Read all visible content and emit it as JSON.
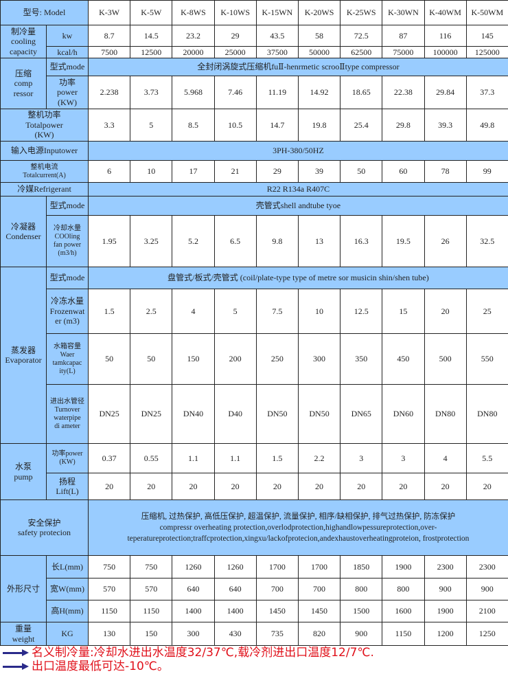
{
  "header": {
    "label": "型号: Model",
    "models": [
      "K-3W",
      "K-5W",
      "K-8WS",
      "K-10WS",
      "K-15WN",
      "K-20WS",
      "K-25WS",
      "K-30WN",
      "K-40WM",
      "K-50WM"
    ]
  },
  "sections": [
    {
      "group": "制冷量\ncooling\ncapacity",
      "rows": [
        {
          "label": "kw",
          "values": [
            "8.7",
            "14.5",
            "23.2",
            "29",
            "43.5",
            "58",
            "72.5",
            "87",
            "116",
            "145"
          ]
        },
        {
          "label": "kcal/h",
          "values": [
            "7500",
            "12500",
            "20000",
            "25000",
            "37500",
            "50000",
            "62500",
            "75000",
            "100000",
            "125000"
          ]
        }
      ]
    },
    {
      "group": "压缩\ncomp\nressor",
      "rows": [
        {
          "label": "型式mode",
          "span": "全封闭涡旋式压缩机fuⅡ-henrmetic scrooⅡtype compressor"
        },
        {
          "label": "功率\npower\n(KW)",
          "values": [
            "2.238",
            "3.73",
            "5.968",
            "7.46",
            "11.19",
            "14.92",
            "18.65",
            "22.38",
            "29.84",
            "37.3"
          ]
        }
      ]
    },
    {
      "full": "整机功率\nTotalpower\n(KW)",
      "values": [
        "3.3",
        "5",
        "8.5",
        "10.5",
        "14.7",
        "19.8",
        "25.4",
        "29.8",
        "39.3",
        "49.8"
      ]
    },
    {
      "full": "输入电源Inputower",
      "span": "3PH-380/50HZ"
    },
    {
      "full": "整机电流\nTotalcurrent(A)",
      "small": true,
      "values": [
        "6",
        "10",
        "17",
        "21",
        "29",
        "39",
        "50",
        "60",
        "78",
        "99"
      ]
    },
    {
      "full": "冷媒Refrigerant",
      "span": "R22 R134a R407C"
    },
    {
      "group": "冷凝器\nCondenser",
      "rows": [
        {
          "label": "型式mode",
          "span": "壳管式shell andtube tyoe"
        },
        {
          "label": "冷却水量\nCOOling\nfan power\n(m3/h)",
          "values": [
            "1.95",
            "3.25",
            "5.2",
            "6.5",
            "9.8",
            "13",
            "16.3",
            "19.5",
            "26",
            "32.5"
          ]
        }
      ]
    },
    {
      "group": "蒸发器\nEvaporator",
      "rows": [
        {
          "label": "型式mode",
          "span": "盘管式/板式/壳管式 (coil/plate-type type of metre sor musicin shin/shen tube)"
        },
        {
          "label": "冷冻水量\nFrozenwat\ner (m3)",
          "values": [
            "1.5",
            "2.5",
            "4",
            "5",
            "7.5",
            "10",
            "12.5",
            "15",
            "20",
            "25"
          ]
        },
        {
          "label": "水箱容量\nWaer\ntamkcapac\nity(L)",
          "values": [
            "50",
            "50",
            "150",
            "200",
            "250",
            "300",
            "350",
            "450",
            "500",
            "550"
          ]
        },
        {
          "label": "进出水管径\nTurnover\nwaterpipe\ndi ameter",
          "values": [
            "DN25",
            "DN25",
            "DN40",
            "D40",
            "DN50",
            "DN50",
            "DN65",
            "DN60",
            "DN80",
            "DN80"
          ]
        }
      ]
    },
    {
      "group": "水泵\npump",
      "rows": [
        {
          "label": "功率power\n(KW)",
          "values": [
            "0.37",
            "0.55",
            "1.1",
            "1.1",
            "1.5",
            "2.2",
            "3",
            "3",
            "4",
            "5.5"
          ]
        },
        {
          "label": "扬程\nLift(L)",
          "values": [
            "20",
            "20",
            "20",
            "20",
            "20",
            "20",
            "20",
            "20",
            "20",
            "20"
          ]
        }
      ]
    },
    {
      "full": "安全保护\nsafety protecion",
      "safety": "压缩机, 过热保护, 高低压保护, 超温保护, 流量保护, 相序/缺相保护, 排气过热保护, 防冻保护\ncompressr overheating protection,overlodprotection,highandlowpessureprotection,over-teperatureprotection;traffcprotection,xingxu/lackofprotecion,andexhaustoverheatingproteion,      frostprotection"
    },
    {
      "group": "外形尺寸",
      "rows": [
        {
          "label": "长L(mm)",
          "values": [
            "750",
            "750",
            "1260",
            "1260",
            "1700",
            "1700",
            "1850",
            "1900",
            "2300",
            "2300"
          ]
        },
        {
          "label": "宽W(mm)",
          "values": [
            "570",
            "570",
            "640",
            "640",
            "700",
            "700",
            "800",
            "800",
            "900",
            "900"
          ]
        },
        {
          "label": "高H(mm)",
          "values": [
            "1150",
            "1150",
            "1400",
            "1400",
            "1450",
            "1450",
            "1500",
            "1600",
            "1900",
            "2100"
          ]
        }
      ]
    },
    {
      "group": "重量\nweight",
      "rows": [
        {
          "label": "KG",
          "values": [
            "130",
            "150",
            "300",
            "430",
            "735",
            "820",
            "900",
            "1150",
            "1200",
            "1250"
          ]
        }
      ]
    }
  ],
  "notes": [
    "名义制冷量:冷却水进出水温度32/37℃,载冷剂进出口温度12/7℃.",
    "出口温度最低可达-10℃。"
  ],
  "colors": {
    "header_fill": "#99ccff",
    "note_text": "#e0101a",
    "arrow": "#2a2a8a"
  }
}
